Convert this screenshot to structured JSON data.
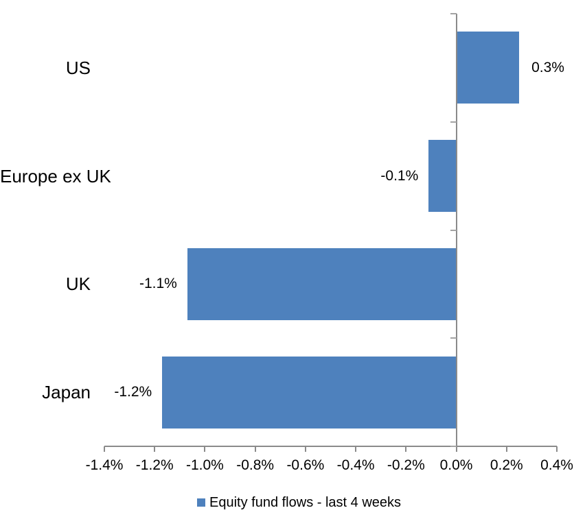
{
  "chart_data": {
    "type": "bar",
    "orientation": "horizontal",
    "title": "",
    "xlabel": "",
    "ylabel": "",
    "categories": [
      "US",
      "Europe ex UK",
      "UK",
      "Japan"
    ],
    "series": [
      {
        "name": "Equity fund flows - last 4 weeks",
        "values": [
          0.3,
          -0.1,
          -1.1,
          -1.2
        ],
        "value_labels": [
          "0.3%",
          "-0.1%",
          "-1.1%",
          "-1.2%"
        ],
        "plotted_values": [
          0.25,
          -0.11,
          -1.07,
          -1.17
        ]
      }
    ],
    "xlim": [
      -1.4,
      0.4
    ],
    "x_ticks": [
      -1.4,
      -1.2,
      -1.0,
      -0.8,
      -0.6,
      -0.4,
      -0.2,
      0.0,
      0.2,
      0.4
    ],
    "x_tick_labels": [
      "-1.4%",
      "-1.2%",
      "-1.0%",
      "-0.8%",
      "-0.6%",
      "-0.4%",
      "-0.2%",
      "0.0%",
      "0.2%",
      "0.4%"
    ],
    "grid": false,
    "legend_position": "bottom",
    "colors": {
      "bar": "#4E81BD",
      "axis": "#8a8a8a",
      "boundary_tick": "#a3a3a3",
      "text": "#000000",
      "background": "#ffffff"
    }
  },
  "legend": {
    "items": [
      {
        "label": "Equity fund flows - last 4 weeks",
        "color": "#4E81BD"
      }
    ]
  }
}
